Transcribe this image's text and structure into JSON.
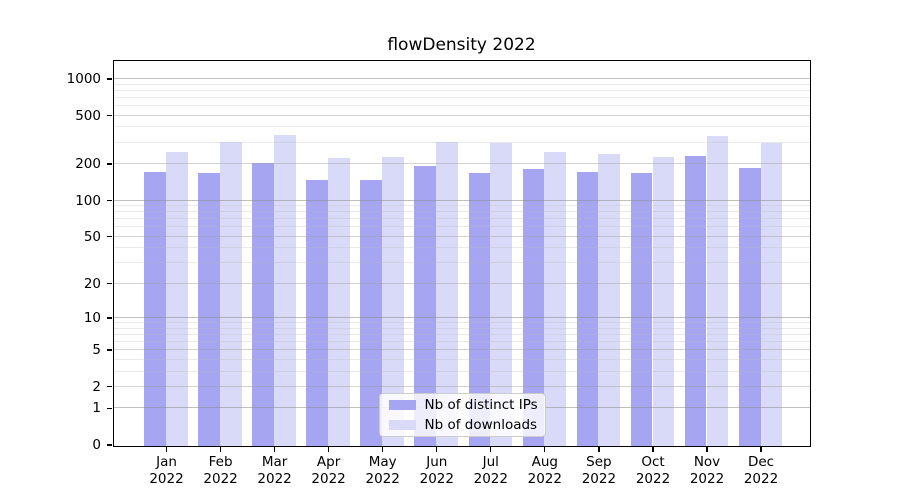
{
  "title": "flowDensity 2022",
  "colors": {
    "distinct_ips_bar": "#a5a5f1",
    "downloads_bar": "#d9d9f8",
    "axis": "#000000",
    "grid_major": "#c0c0c0",
    "grid_minor": "#eaeaea",
    "legend_border": "#cccccc"
  },
  "legend": {
    "items": [
      {
        "label": "Nb of distinct IPs",
        "series": "distinct_ips"
      },
      {
        "label": "Nb of downloads",
        "series": "downloads"
      }
    ]
  },
  "y_axis": {
    "tick_labels": [
      "1000",
      "500",
      "200",
      "100",
      "50",
      "20",
      "10",
      "5",
      "2",
      "1",
      "0"
    ]
  },
  "x_axis": {
    "tick_labels_line1": [
      "Jan",
      "Feb",
      "Mar",
      "Apr",
      "May",
      "Jun",
      "Jul",
      "Aug",
      "Sep",
      "Oct",
      "Nov",
      "Dec"
    ],
    "tick_labels_line2": [
      "2022",
      "2022",
      "2022",
      "2022",
      "2022",
      "2022",
      "2022",
      "2022",
      "2022",
      "2022",
      "2022",
      "2022"
    ]
  },
  "chart_data": {
    "type": "bar",
    "title": "flowDensity 2022",
    "categories": [
      "Jan 2022",
      "Feb 2022",
      "Mar 2022",
      "Apr 2022",
      "May 2022",
      "Jun 2022",
      "Jul 2022",
      "Aug 2022",
      "Sep 2022",
      "Oct 2022",
      "Nov 2022",
      "Dec 2022"
    ],
    "series": [
      {
        "name": "Nb of distinct IPs",
        "color": "#a5a5f1",
        "values": [
          175,
          172,
          205,
          149,
          149,
          196,
          172,
          185,
          174,
          170,
          234,
          188
        ]
      },
      {
        "name": "Nb of downloads",
        "color": "#d9d9f8",
        "values": [
          253,
          306,
          351,
          226,
          230,
          304,
          300,
          253,
          243,
          233,
          345,
          302
        ]
      }
    ],
    "xlabel": "",
    "ylabel": "",
    "yscale": "log1p",
    "yticks": [
      0,
      1,
      2,
      5,
      10,
      20,
      50,
      100,
      200,
      500,
      1000
    ],
    "ylim": [
      0,
      1400
    ],
    "grid": true,
    "grid_minor_ticks": [
      3,
      4,
      6,
      7,
      8,
      9,
      30,
      40,
      60,
      70,
      80,
      90,
      300,
      400,
      600,
      700,
      800,
      900
    ],
    "legend_position": "lower center"
  }
}
